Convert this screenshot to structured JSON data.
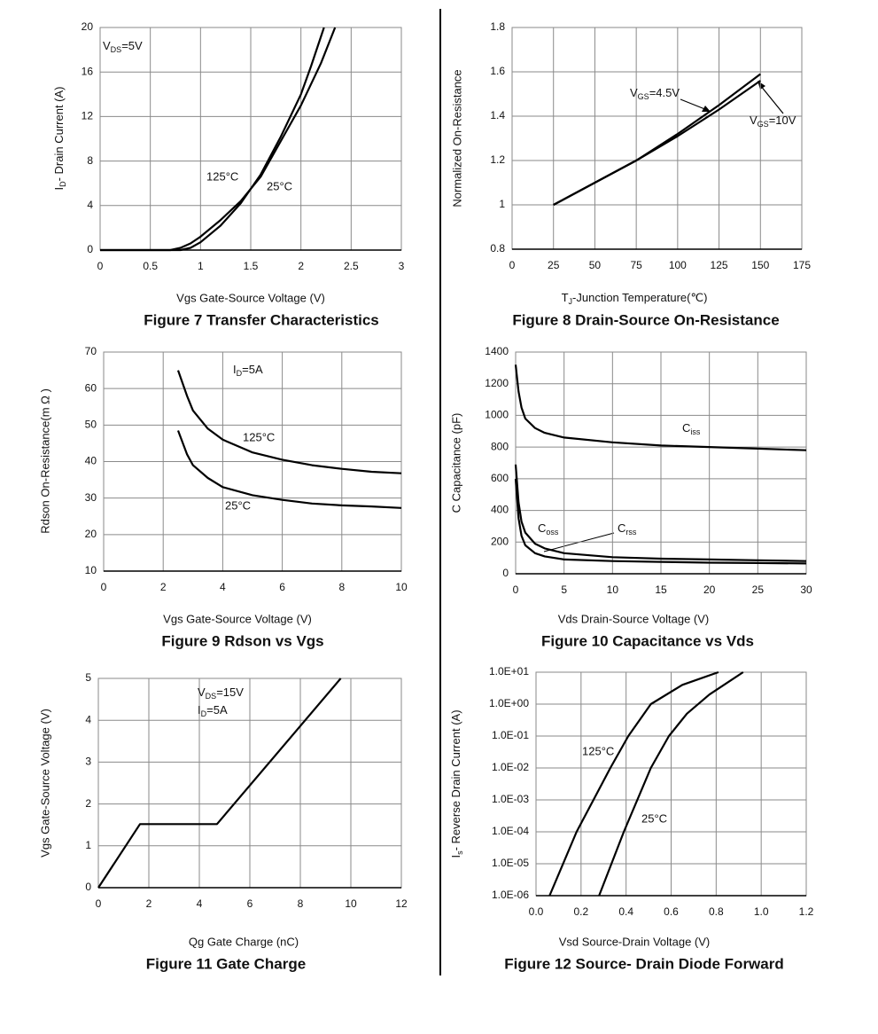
{
  "chart_data": [
    {
      "type": "line",
      "title": "Figure 7 Transfer Characteristics",
      "xlabel": "Vgs Gate-Source Voltage (V)",
      "ylabel": [
        "I",
        "D",
        "- Drain Current (A)"
      ],
      "xlim": [
        0,
        3
      ],
      "xticks": [
        0,
        0.5,
        1,
        1.5,
        2,
        2.5,
        3
      ],
      "ylim": [
        0,
        20
      ],
      "yticks": [
        0,
        4,
        8,
        12,
        16,
        20
      ],
      "grid": true,
      "annotations": [
        [
          "V",
          "DS",
          "=5V"
        ]
      ],
      "series": [
        {
          "name": "125°C",
          "color": "#000000",
          "x": [
            0,
            0.7,
            0.8,
            0.9,
            1.0,
            1.2,
            1.4,
            1.6,
            1.8,
            2.0,
            2.2,
            2.34
          ],
          "values": [
            0,
            0,
            0.2,
            0.6,
            1.2,
            2.7,
            4.4,
            6.6,
            9.8,
            13,
            16.8,
            20
          ]
        },
        {
          "name": "25°C",
          "color": "#000000",
          "x": [
            0,
            0.8,
            0.9,
            1.0,
            1.2,
            1.4,
            1.6,
            1.8,
            2.0,
            2.1,
            2.23
          ],
          "values": [
            0,
            0,
            0.2,
            0.7,
            2.2,
            4.2,
            6.8,
            10.2,
            14,
            16.5,
            20
          ]
        }
      ]
    },
    {
      "type": "line",
      "title": "Figure 8 Drain-Source On-Resistance",
      "xlabel": [
        "T",
        "J",
        "-Junction Temperature(℃)"
      ],
      "ylabel": "Normalized On-Resistance",
      "xlim": [
        0,
        175
      ],
      "xticks": [
        0,
        25,
        50,
        75,
        100,
        125,
        150,
        175
      ],
      "ylim": [
        0.8,
        1.8
      ],
      "yticks": [
        0.8,
        1,
        1.2,
        1.4,
        1.6,
        1.8
      ],
      "grid": true,
      "series": [
        {
          "name": [
            "V",
            "GS",
            "=4.5V"
          ],
          "color": "#000000",
          "x": [
            25,
            50,
            75,
            100,
            125,
            150
          ],
          "values": [
            1.0,
            1.1,
            1.2,
            1.32,
            1.45,
            1.59
          ]
        },
        {
          "name": [
            "V",
            "GS",
            "=10V"
          ],
          "color": "#000000",
          "x": [
            25,
            50,
            75,
            100,
            125,
            150
          ],
          "values": [
            1.0,
            1.1,
            1.2,
            1.31,
            1.43,
            1.56
          ]
        }
      ]
    },
    {
      "type": "line",
      "title": "Figure 9 Rdson vs Vgs",
      "xlabel": "Vgs Gate-Source Voltage (V)",
      "ylabel": "Rdson On-Resistance(m Ω )",
      "xlim": [
        0,
        10
      ],
      "xticks": [
        0,
        2,
        4,
        6,
        8,
        10
      ],
      "ylim": [
        10,
        70
      ],
      "yticks": [
        10,
        20,
        30,
        40,
        50,
        60,
        70
      ],
      "grid": true,
      "annotations": [
        [
          "I",
          "D",
          "=5A"
        ]
      ],
      "series": [
        {
          "name": "125°C",
          "color": "#000000",
          "x": [
            2.5,
            2.8,
            3,
            3.5,
            4,
            5,
            6,
            7,
            8,
            9,
            10
          ],
          "values": [
            65,
            58,
            54,
            49,
            46,
            42.5,
            40.5,
            39,
            38,
            37.2,
            36.8
          ]
        },
        {
          "name": "25°C",
          "color": "#000000",
          "x": [
            2.5,
            2.8,
            3,
            3.5,
            4,
            5,
            6,
            7,
            8,
            9,
            10
          ],
          "values": [
            48.5,
            42,
            39,
            35.5,
            33,
            30.8,
            29.5,
            28.5,
            28,
            27.7,
            27.3
          ]
        }
      ]
    },
    {
      "type": "line",
      "title": "Figure 10 Capacitance vs Vds",
      "xlabel": "Vds Drain-Source Voltage (V)",
      "ylabel": "C Capacitance (pF)",
      "xlim": [
        0,
        30
      ],
      "xticks": [
        0,
        5,
        10,
        15,
        20,
        25,
        30
      ],
      "ylim": [
        0,
        1400
      ],
      "yticks": [
        0,
        200,
        400,
        600,
        800,
        1000,
        1200,
        1400
      ],
      "grid": true,
      "series": [
        {
          "name": [
            "C",
            "iss"
          ],
          "color": "#000000",
          "x": [
            0,
            0.3,
            0.6,
            1,
            2,
            3,
            5,
            10,
            15,
            20,
            25,
            30
          ],
          "values": [
            1320,
            1150,
            1050,
            980,
            920,
            890,
            860,
            830,
            810,
            800,
            790,
            780
          ]
        },
        {
          "name": [
            "C",
            "oss"
          ],
          "color": "#000000",
          "x": [
            0,
            0.3,
            0.6,
            1,
            2,
            3,
            5,
            10,
            15,
            20,
            25,
            30
          ],
          "values": [
            690,
            450,
            330,
            260,
            190,
            160,
            130,
            105,
            95,
            90,
            85,
            80
          ]
        },
        {
          "name": [
            "C",
            "rss"
          ],
          "color": "#000000",
          "x": [
            0,
            0.3,
            0.6,
            1,
            2,
            3,
            5,
            10,
            15,
            20,
            25,
            30
          ],
          "values": [
            600,
            350,
            240,
            180,
            130,
            110,
            90,
            80,
            75,
            70,
            68,
            65
          ]
        }
      ]
    },
    {
      "type": "line",
      "title": "Figure 11 Gate Charge",
      "xlabel": "Qg Gate Charge (nC)",
      "ylabel": "Vgs Gate-Source Voltage (V)",
      "xlim": [
        0,
        12
      ],
      "xticks": [
        0,
        2,
        4,
        6,
        8,
        10,
        12
      ],
      "ylim": [
        0,
        5
      ],
      "yticks": [
        0,
        1,
        2,
        3,
        4,
        5
      ],
      "grid": true,
      "annotations": [
        [
          "V",
          "DS",
          "=15V"
        ],
        [
          "I",
          "D",
          "=5A"
        ]
      ],
      "series": [
        {
          "color": "#000000",
          "x": [
            0,
            1.65,
            4.7,
            9.6
          ],
          "values": [
            0,
            1.52,
            1.52,
            5
          ]
        }
      ]
    },
    {
      "type": "line",
      "title": "Figure 12 Source- Drain Diode Forward",
      "xlabel": "Vsd Source-Drain Voltage (V)",
      "ylabel": [
        "I",
        "s",
        "- Reverse Drain Current (A)"
      ],
      "xlim": [
        0,
        1.2
      ],
      "xticks": [
        {
          "value": 0,
          "label": "0.0"
        },
        0.2,
        0.4,
        0.6,
        0.8,
        {
          "value": 1,
          "label": "1.0"
        },
        1.2
      ],
      "ylim": [
        1e-06,
        10
      ],
      "log_y": true,
      "yticks": [
        {
          "value": 1e-06,
          "label": "1.0E-06"
        },
        {
          "value": 1e-05,
          "label": "1.0E-05"
        },
        {
          "value": 0.0001,
          "label": "1.0E-04"
        },
        {
          "value": 0.001,
          "label": "1.0E-03"
        },
        {
          "value": 0.01,
          "label": "1.0E-02"
        },
        {
          "value": 0.1,
          "label": "1.0E-01"
        },
        {
          "value": 1,
          "label": "1.0E+00"
        },
        {
          "value": 10,
          "label": "1.0E+01"
        }
      ],
      "grid": true,
      "series": [
        {
          "name": "125°C",
          "color": "#000000",
          "x": [
            0.06,
            0.18,
            0.33,
            0.41,
            0.51,
            0.65,
            0.81
          ],
          "values": [
            1e-06,
            0.0001,
            0.01,
            0.1,
            1,
            4,
            10
          ]
        },
        {
          "name": "25°C",
          "color": "#000000",
          "x": [
            0.28,
            0.39,
            0.51,
            0.59,
            0.67,
            0.77,
            0.92
          ],
          "values": [
            1e-06,
            0.0001,
            0.01,
            0.1,
            0.5,
            2,
            10
          ]
        }
      ]
    }
  ]
}
